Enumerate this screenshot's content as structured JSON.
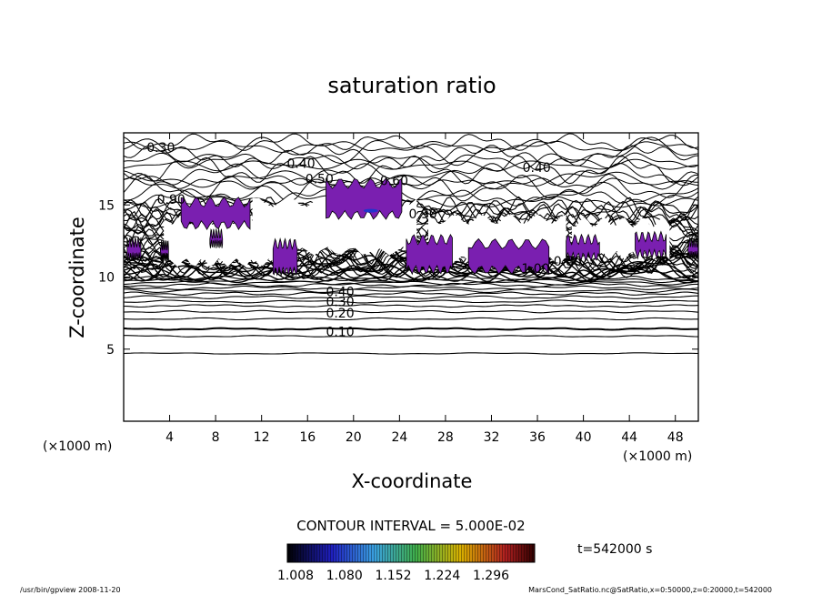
{
  "chart_data": {
    "type": "contour",
    "title": "saturation ratio",
    "xlabel": "X-coordinate",
    "ylabel": "Z-coordinate",
    "x_unit": "(×1000 m)",
    "x_unit_right": "(×1000 m)",
    "xlim": [
      0,
      50
    ],
    "ylim": [
      0,
      20
    ],
    "x_ticks": [
      4,
      8,
      12,
      16,
      20,
      24,
      28,
      32,
      36,
      40,
      44,
      48
    ],
    "y_ticks": [
      5,
      10,
      15
    ],
    "contour_interval_text": "CONTOUR INTERVAL = 5.000E-02",
    "contour_labels": [
      {
        "text": "0.10",
        "x": 17.6,
        "z": 6.2
      },
      {
        "text": "0.20",
        "x": 17.6,
        "z": 7.5
      },
      {
        "text": "0.30",
        "x": 17.6,
        "z": 8.3
      },
      {
        "text": "0.40",
        "x": 17.6,
        "z": 9.0
      },
      {
        "text": "0.30",
        "x": 2.0,
        "z": 19.0
      },
      {
        "text": "0.40",
        "x": 14.2,
        "z": 17.9
      },
      {
        "text": "0.50",
        "x": 15.8,
        "z": 16.8
      },
      {
        "text": "0.60",
        "x": 22.3,
        "z": 16.7
      },
      {
        "text": "0.40",
        "x": 34.7,
        "z": 17.6
      },
      {
        "text": "1.00",
        "x": 34.6,
        "z": 10.6
      },
      {
        "text": "0.90",
        "x": 2.9,
        "z": 15.4
      },
      {
        "text": "0.90",
        "x": 24.8,
        "z": 14.4
      },
      {
        "text": "0.80",
        "x": 37.4,
        "z": 11.1
      }
    ],
    "supersaturation_levels": [
      1.008,
      1.08,
      1.152,
      1.224,
      1.296
    ],
    "colorbar_colors": [
      "#000000",
      "#1f1fbf",
      "#3aa0e0",
      "#3fae4a",
      "#d9b000",
      "#b02020",
      "#000000"
    ],
    "fill_color": "#7a1fb0",
    "time_label": "t=542000 s"
  },
  "footer": {
    "left": "/usr/bin/gpview  2008-11-20",
    "right": "MarsCond_SatRatio.nc@SatRatio,x=0:50000,z=0:20000,t=542000"
  }
}
